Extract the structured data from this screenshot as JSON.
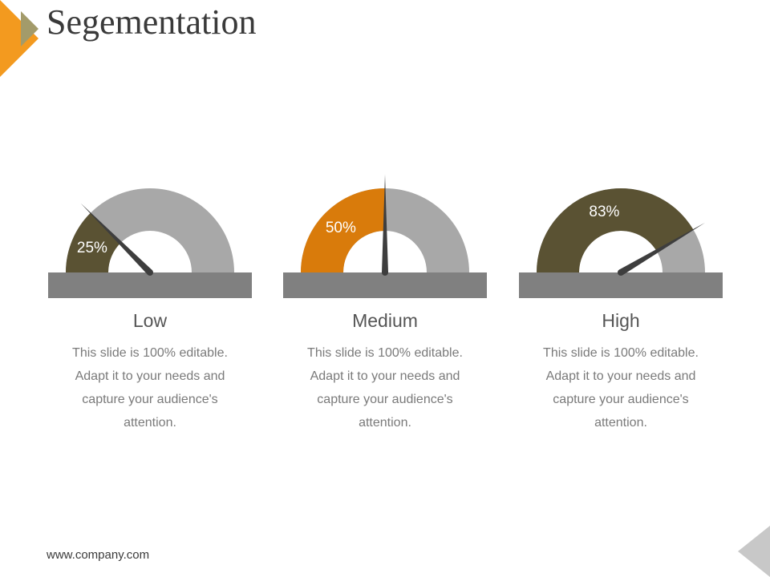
{
  "slide": {
    "title": "Segementation",
    "footer": "www.company.com",
    "colors": {
      "accent_orange": "#f39a1f",
      "accent_olive": "#a39b6a",
      "track_gray": "#a8a8a8",
      "base_gray": "#808080",
      "needle": "#3e3e3e",
      "corner_gray": "#c8c8c8"
    }
  },
  "gauges": [
    {
      "label": "Low",
      "percent": 25,
      "percent_text": "25%",
      "fill_color": "#5a5233",
      "description": "This slide is 100% editable. Adapt it to your needs and capture your audience's attention."
    },
    {
      "label": "Medium",
      "percent": 50,
      "percent_text": "50%",
      "fill_color": "#d97b0b",
      "description": "This slide is 100% editable. Adapt it to your needs and capture your audience's attention."
    },
    {
      "label": "High",
      "percent": 83,
      "percent_text": "83%",
      "fill_color": "#5a5233",
      "description": "This slide is 100% editable. Adapt it to your needs and capture your audience's attention."
    }
  ]
}
